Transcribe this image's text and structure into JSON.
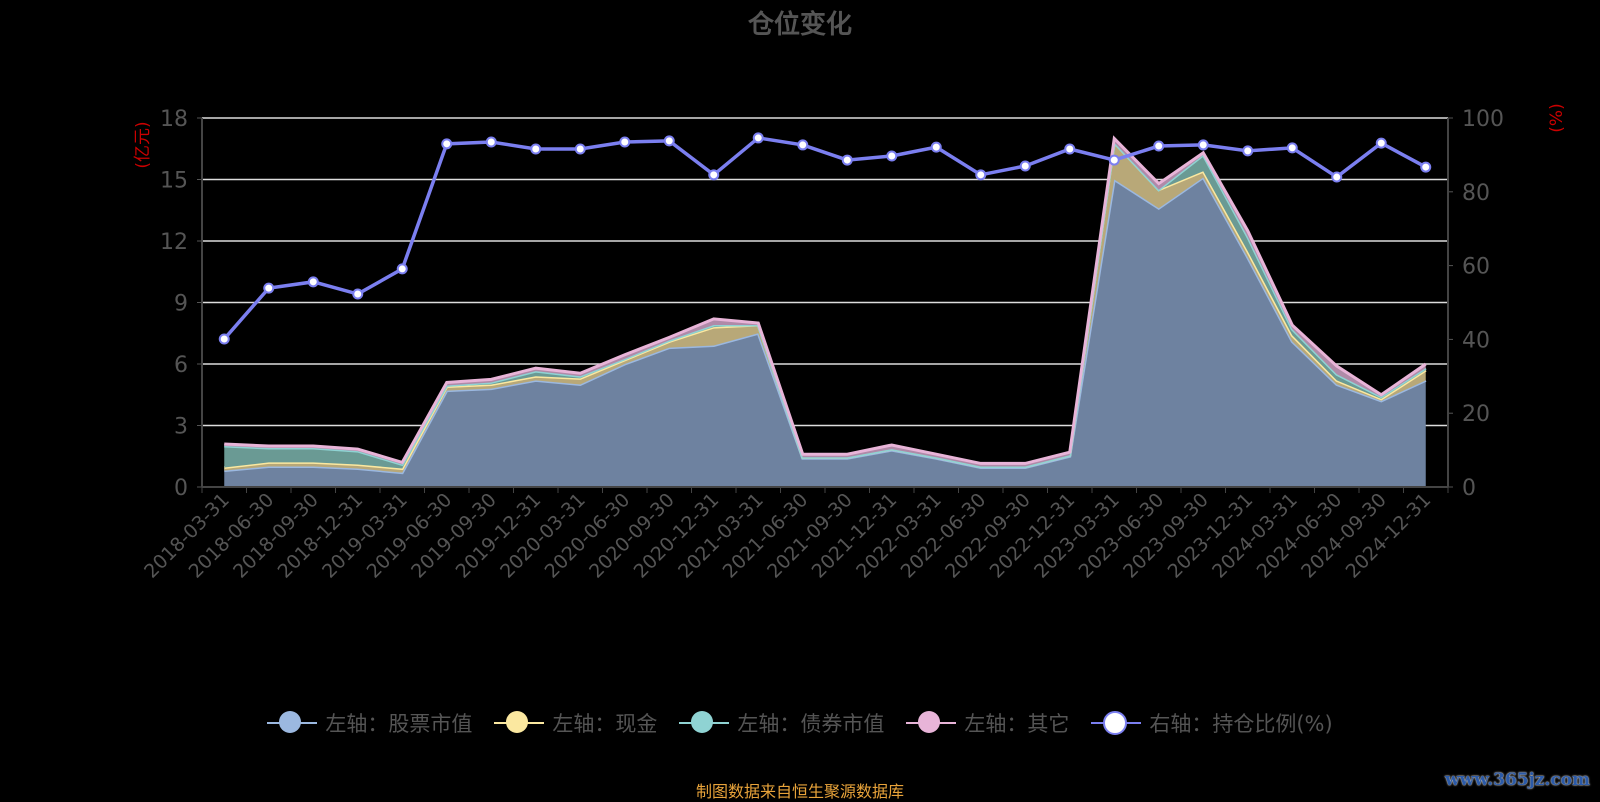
{
  "title": "仓位变化",
  "footer": "制图数据来自恒生聚源数据库",
  "watermark": "www.365jz.com",
  "colors": {
    "stock": "#9bb8e0",
    "cash": "#fbe8a0",
    "bond": "#8fd3d3",
    "other": "#e8b4d8",
    "ratio": "#7b7ff0",
    "axis_unit": "#cc0000",
    "footer": "#e8a33a"
  },
  "chart_data": {
    "type": "area",
    "stacked": true,
    "title": "仓位变化",
    "ylabel_left": "(亿元)",
    "ylabel_right": "(%)",
    "ylim_left": [
      0,
      18
    ],
    "yticks_left": [
      0,
      3,
      6,
      9,
      12,
      15,
      18
    ],
    "ylim_right": [
      0,
      100
    ],
    "yticks_right": [
      0,
      20,
      40,
      60,
      80,
      100
    ],
    "grid": true,
    "legend_placement": "bottom",
    "categories": [
      "2018-03-31",
      "2018-06-30",
      "2018-09-30",
      "2018-12-31",
      "2019-03-31",
      "2019-06-30",
      "2019-09-30",
      "2019-12-31",
      "2020-03-31",
      "2020-06-30",
      "2020-09-30",
      "2020-12-31",
      "2021-03-31",
      "2021-06-30",
      "2021-09-30",
      "2021-12-31",
      "2022-03-31",
      "2022-06-30",
      "2022-09-30",
      "2022-12-31",
      "2023-03-31",
      "2023-06-30",
      "2023-09-30",
      "2023-12-31",
      "2024-03-31",
      "2024-06-30",
      "2024-09-30",
      "2024-12-31"
    ],
    "series": [
      {
        "name": "左轴：股票市值",
        "key": "stock",
        "axis": "left",
        "values": [
          0.8,
          1.0,
          1.0,
          0.9,
          0.7,
          4.7,
          4.8,
          5.2,
          5.0,
          6.0,
          6.8,
          6.9,
          7.5,
          1.4,
          1.4,
          1.8,
          1.4,
          0.95,
          0.95,
          1.5,
          15.0,
          13.6,
          15.1,
          11.2,
          7.1,
          5.0,
          4.2,
          5.2
        ]
      },
      {
        "name": "左轴：现金",
        "key": "cash",
        "axis": "left",
        "values": [
          0.15,
          0.2,
          0.2,
          0.2,
          0.2,
          0.2,
          0.2,
          0.2,
          0.3,
          0.2,
          0.3,
          0.9,
          0.4,
          0.05,
          0.05,
          0.05,
          0.05,
          0.05,
          0.05,
          0.05,
          1.8,
          0.9,
          0.3,
          0.3,
          0.3,
          0.2,
          0.1,
          0.5
        ]
      },
      {
        "name": "左轴：债券市值",
        "key": "bond",
        "axis": "left",
        "values": [
          1.05,
          0.7,
          0.7,
          0.65,
          0.2,
          0.05,
          0.1,
          0.25,
          0.1,
          0.05,
          0.05,
          0.1,
          0.0,
          0,
          0,
          0,
          0,
          0,
          0,
          0,
          0,
          0,
          0.8,
          0.7,
          0.3,
          0.3,
          0.1,
          0.1
        ]
      },
      {
        "name": "左轴：其它",
        "key": "other",
        "axis": "left",
        "values": [
          0.1,
          0.1,
          0.1,
          0.1,
          0.1,
          0.15,
          0.15,
          0.15,
          0.15,
          0.2,
          0.15,
          0.3,
          0.1,
          0.15,
          0.15,
          0.2,
          0.15,
          0.15,
          0.15,
          0.15,
          0.2,
          0.3,
          0.1,
          0.3,
          0.2,
          0.4,
          0.1,
          0.2
        ]
      },
      {
        "name": "右轴：持仓比例(%)",
        "key": "ratio",
        "axis": "right",
        "type": "line",
        "values": [
          40.1,
          53.9,
          55.6,
          52.3,
          59.1,
          93.0,
          93.5,
          91.6,
          91.6,
          93.5,
          93.8,
          84.6,
          94.6,
          92.7,
          88.6,
          89.7,
          92.1,
          84.6,
          87.0,
          91.6,
          88.6,
          92.4,
          92.7,
          91.1,
          91.9,
          84.0,
          93.2,
          86.7
        ]
      }
    ]
  }
}
